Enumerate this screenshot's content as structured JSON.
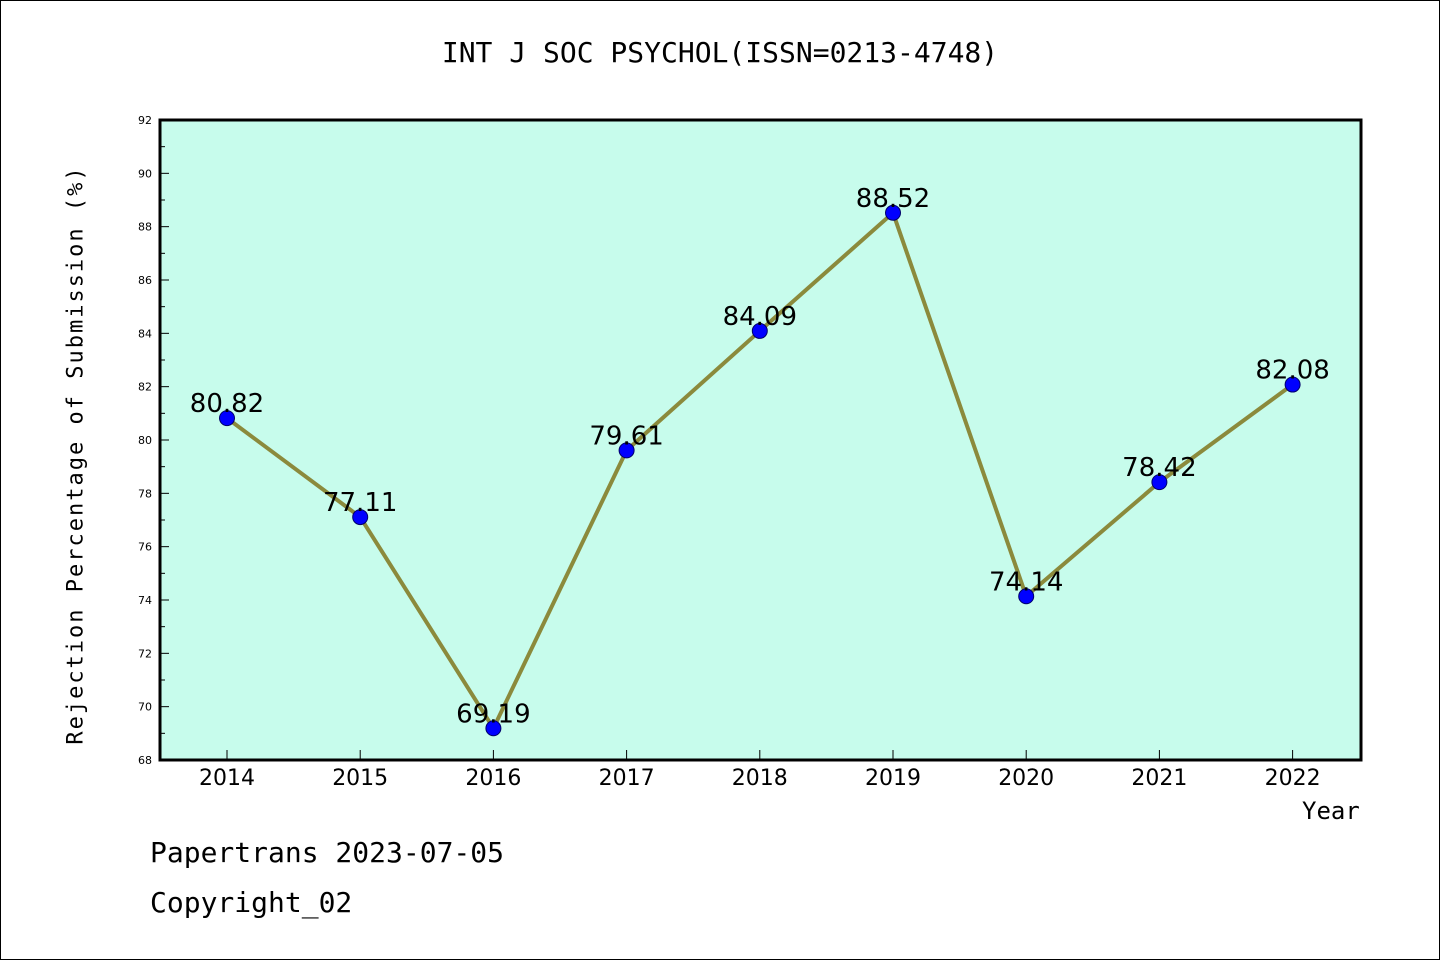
{
  "chart_data": {
    "type": "line",
    "title": "INT J SOC PSYCHOL(ISSN=0213-4748)",
    "xlabel": "Year",
    "ylabel": "Rejection Percentage of Submission (%)",
    "categories": [
      "2014",
      "2015",
      "2016",
      "2017",
      "2018",
      "2019",
      "2020",
      "2021",
      "2022"
    ],
    "values": [
      80.82,
      77.11,
      69.19,
      79.61,
      84.09,
      88.52,
      74.14,
      78.42,
      82.08
    ],
    "value_labels": [
      "80.82",
      "77.11",
      "69.19",
      "79.61",
      "84.09",
      "88.52",
      "74.14",
      "78.42",
      "82.08"
    ],
    "ylim": [
      68,
      92
    ],
    "yticks": [
      "68",
      "70",
      "72",
      "74",
      "76",
      "78",
      "80",
      "82",
      "84",
      "86",
      "88",
      "90",
      "92"
    ],
    "grid": false,
    "colors": {
      "plot_background": "#c7fcec",
      "line": "#8b8a3c",
      "marker": "#0000ff"
    }
  },
  "footer": {
    "line1": "Papertrans 2023-07-05",
    "line2": "Copyright_02"
  }
}
